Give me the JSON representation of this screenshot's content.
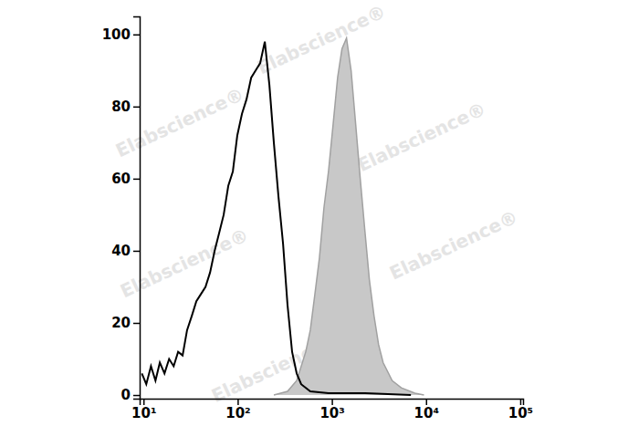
{
  "chart_data": {
    "type": "line",
    "log": "x",
    "xlim": [
      9.1,
      107000
    ],
    "ylim": [
      -1,
      105
    ],
    "xticks": [
      {
        "value": 10,
        "label": "10¹"
      },
      {
        "value": 100,
        "label": "10²"
      },
      {
        "value": 1000,
        "label": "10³"
      },
      {
        "value": 10000,
        "label": "10⁴"
      },
      {
        "value": 100000,
        "label": "10⁵"
      }
    ],
    "yticks": [
      0,
      20,
      40,
      60,
      80,
      100
    ],
    "series": [
      {
        "type": "area",
        "color": "#c8c8c8",
        "x": [
          242,
          338,
          423,
          528,
          590,
          660,
          737,
          824,
          920,
          1030,
          1150,
          1280,
          1430,
          1600,
          1790,
          2000,
          2250,
          2500,
          2800,
          3130,
          3500,
          4370,
          5460,
          7600,
          9500
        ],
        "values": [
          0,
          1,
          4,
          12,
          18,
          28,
          38,
          52,
          62,
          75,
          88,
          96,
          99,
          90,
          75,
          60,
          45,
          32,
          22,
          14,
          9,
          4,
          2,
          0.5,
          0
        ]
      },
      {
        "type": "line",
        "color": "#000000",
        "x": [
          9.6,
          10.7,
          12,
          13.4,
          14.9,
          16.7,
          18.7,
          20.9,
          23.3,
          26,
          29,
          32.6,
          36.4,
          40.7,
          45.5,
          50.9,
          56.9,
          63.6,
          71,
          79.4,
          88.8,
          99,
          111,
          124,
          139,
          155,
          173,
          194,
          217,
          242,
          271,
          303,
          338,
          378,
          423,
          472,
          590,
          920,
          2250,
          6900
        ],
        "values": [
          6,
          3,
          8,
          4,
          9,
          6,
          10,
          8,
          12,
          11,
          18,
          22,
          26,
          28,
          30,
          34,
          40,
          45,
          50,
          58,
          62,
          72,
          78,
          82,
          88,
          90,
          92,
          98,
          86,
          70,
          55,
          42,
          25,
          12,
          6,
          3,
          1,
          0.5,
          0.5,
          0
        ]
      }
    ],
    "annotations": [
      {
        "text": "Elabscience®",
        "x": 26,
        "y": 74
      },
      {
        "text": "Elabscience®",
        "x": 830,
        "y": 97
      },
      {
        "text": "Elabscience®",
        "x": 9600,
        "y": 70
      },
      {
        "text": "Elabscience®",
        "x": 29,
        "y": 35
      },
      {
        "text": "Elabscience®",
        "x": 21000,
        "y": 40
      },
      {
        "text": "Elabscience®",
        "x": 270,
        "y": 6
      }
    ]
  }
}
